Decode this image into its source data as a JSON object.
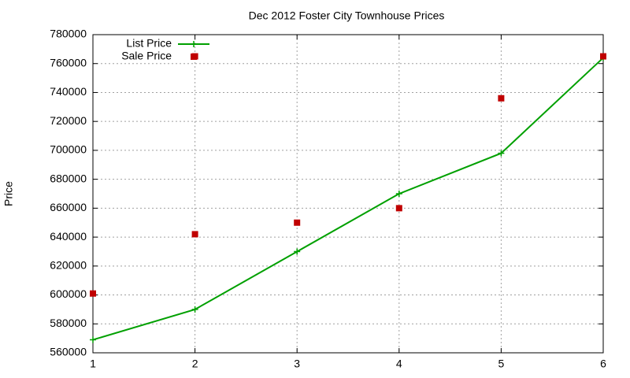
{
  "chart_data": {
    "type": "line",
    "title": "Dec 2012 Foster City Townhouse Prices",
    "ylabel": "Price",
    "xlim": [
      1,
      6
    ],
    "ylim": [
      560000,
      780000
    ],
    "xticks": [
      1,
      2,
      3,
      4,
      5,
      6
    ],
    "yticks": [
      560000,
      580000,
      600000,
      620000,
      640000,
      660000,
      680000,
      700000,
      720000,
      740000,
      760000,
      780000
    ],
    "grid": true,
    "legend": "top-left",
    "series": [
      {
        "name": "List Price",
        "color": "#00a000",
        "line": true,
        "marker": "plus",
        "x": [
          1,
          2,
          3,
          4,
          5,
          6
        ],
        "values": [
          569000,
          590000,
          630000,
          670000,
          698000,
          764000
        ]
      },
      {
        "name": "Sale Price",
        "color": "#c00000",
        "line": false,
        "marker": "square",
        "x": [
          1,
          2,
          2,
          3,
          4,
          5,
          6
        ],
        "values": [
          601000,
          642000,
          765000,
          650000,
          660000,
          736000,
          765000
        ]
      }
    ]
  }
}
